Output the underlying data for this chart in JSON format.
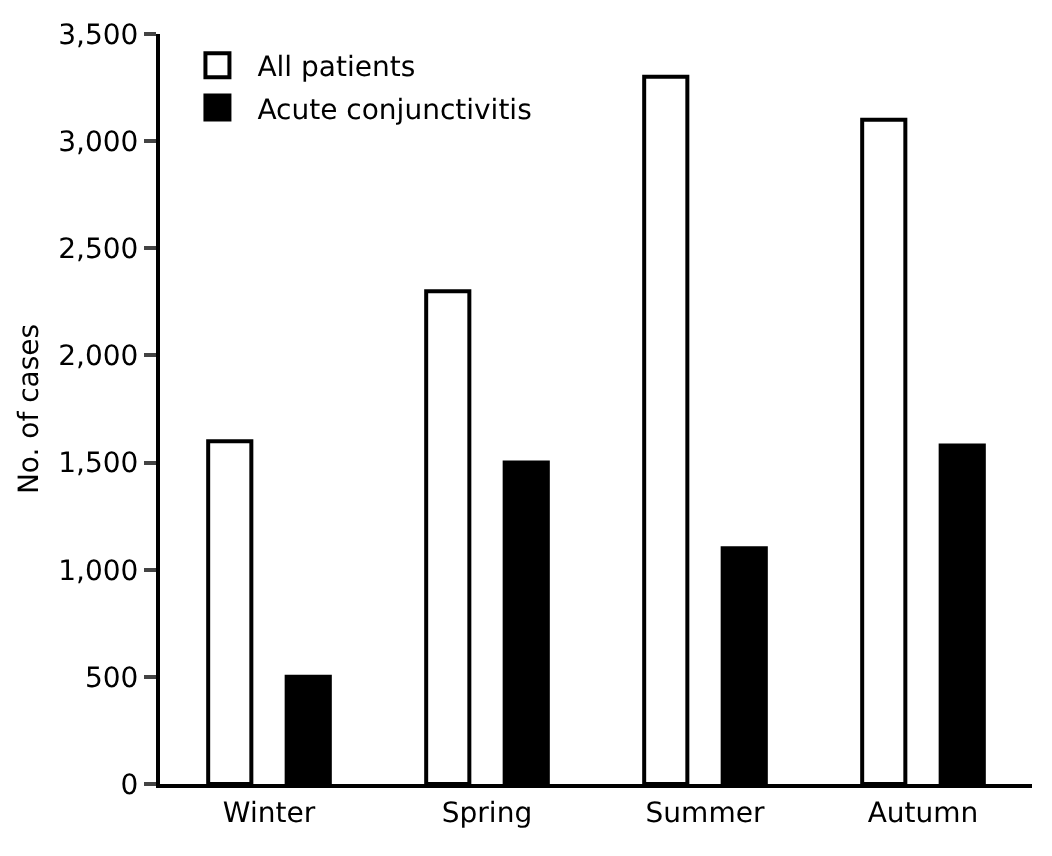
{
  "chart_data": {
    "type": "bar",
    "ylabel": "No. of cases",
    "categories": [
      "Winter",
      "Spring",
      "Summer",
      "Autumn"
    ],
    "series": [
      {
        "name": "All patients",
        "color": "#ffffff",
        "values": [
          1600,
          2300,
          3300,
          3100
        ]
      },
      {
        "name": "Acute conjunctivitis",
        "color": "#000000",
        "values": [
          500,
          1500,
          1100,
          1580
        ]
      }
    ],
    "ylim": [
      0,
      3500
    ],
    "yticks": [
      0,
      {
        "value": 500,
        "label": "500"
      },
      {
        "value": 1000,
        "label": "1,000"
      },
      {
        "value": 1500,
        "label": "1,500"
      },
      {
        "value": 2000,
        "label": "2,000"
      },
      {
        "value": 2500,
        "label": "2,500"
      },
      {
        "value": 3000,
        "label": "3,000"
      },
      {
        "value": 3500,
        "label": "3,500"
      }
    ],
    "grid": false,
    "legend": "top left"
  }
}
